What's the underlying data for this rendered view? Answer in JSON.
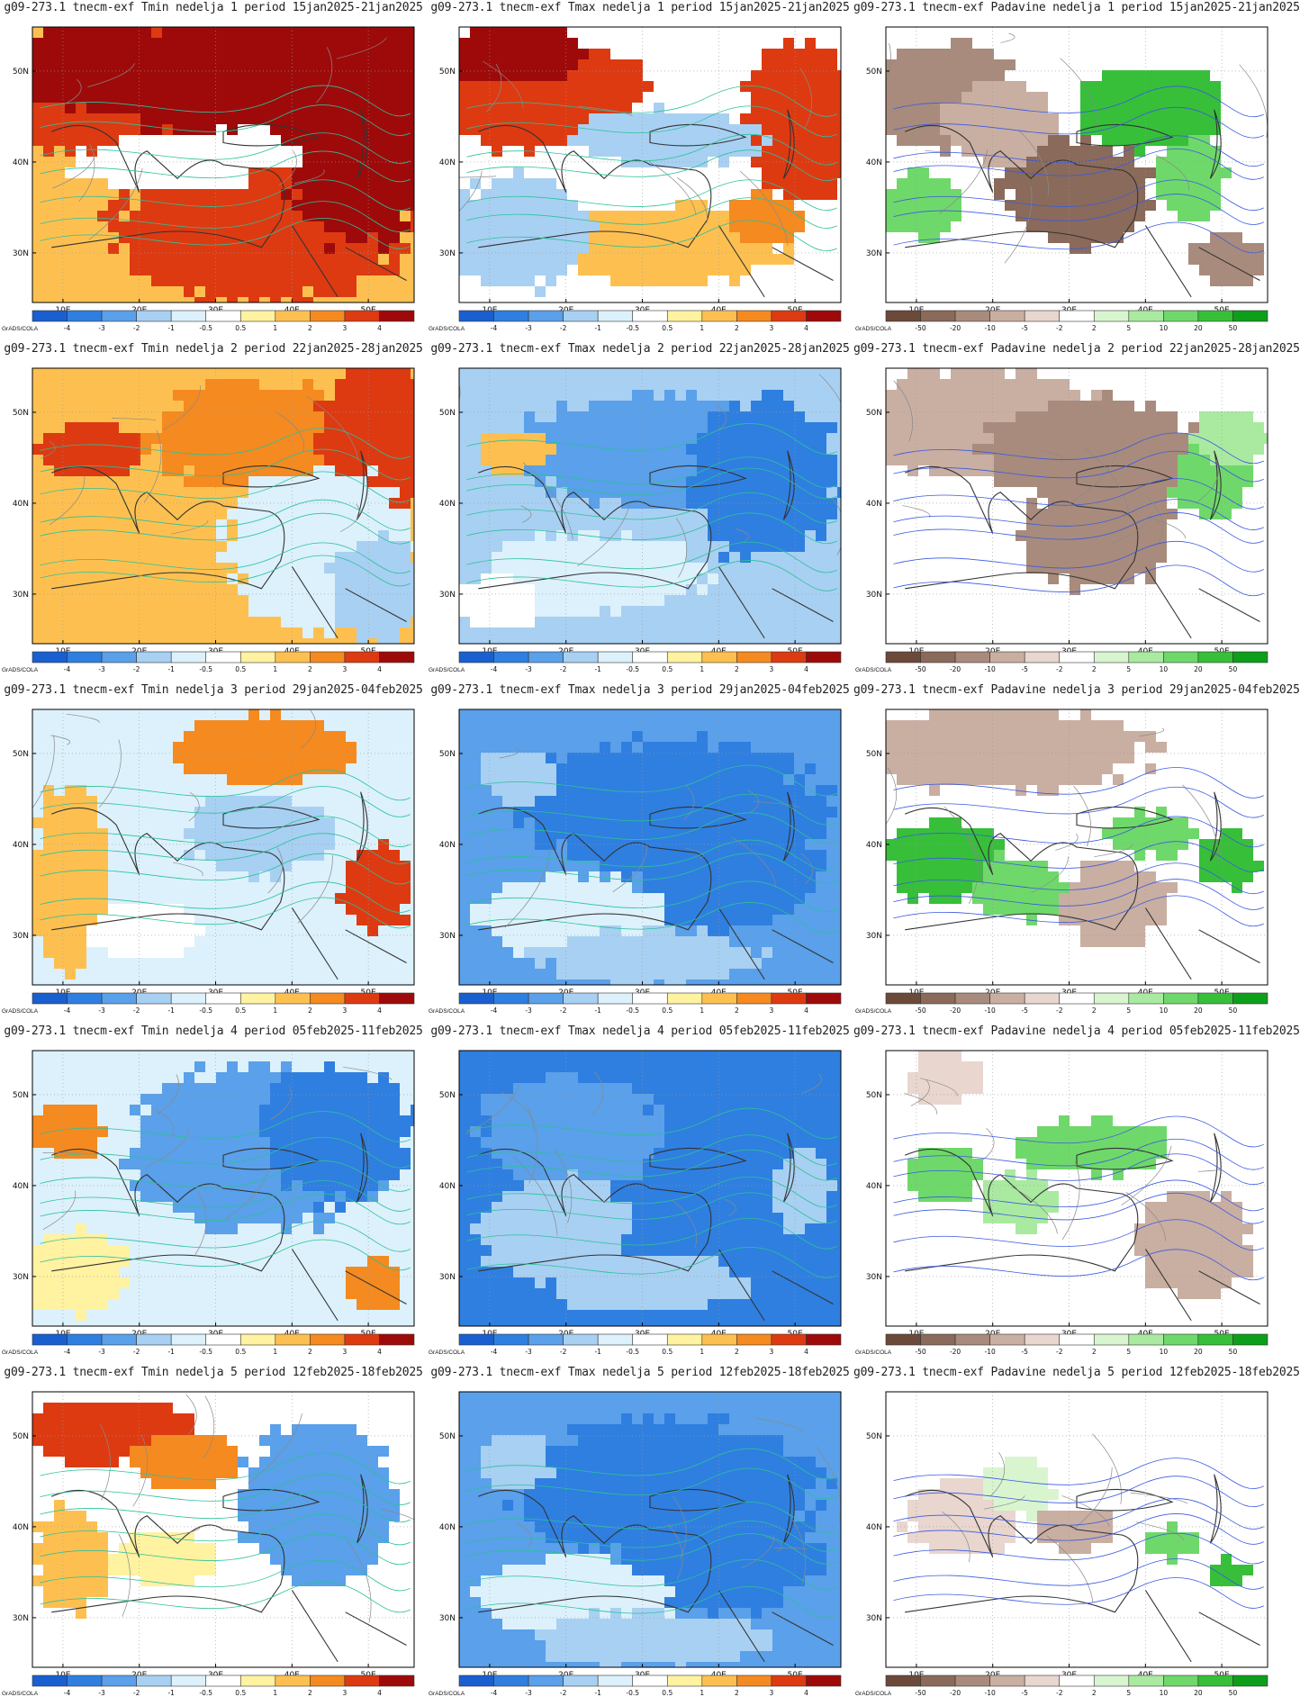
{
  "credit": "GrADS/COLA",
  "colorbars": {
    "temp": {
      "labels": [
        "-4",
        "-3",
        "-2",
        "-1",
        "-0.5",
        "0.5",
        "1",
        "2",
        "3",
        "4"
      ],
      "colors": [
        "#1a5fcf",
        "#2f7fe0",
        "#5aa0ea",
        "#a8d0f2",
        "#dcf1fb",
        "#ffffff",
        "#fff2a0",
        "#fdc050",
        "#f48a20",
        "#dd3a12",
        "#9e0a0a"
      ]
    },
    "prec": {
      "labels": [
        "-50",
        "-20",
        "-10",
        "-5",
        "-2",
        "2",
        "5",
        "10",
        "20",
        "50"
      ],
      "colors": [
        "#6b4a3a",
        "#8a6a5a",
        "#a88b7c",
        "#c9aea2",
        "#e8d6cf",
        "#ffffff",
        "#d8f5d0",
        "#a9eaa0",
        "#6fd86a",
        "#37bf3a",
        "#0e9f1a"
      ]
    }
  },
  "axes": {
    "lon_ticks": [
      "10E",
      "20E",
      "30E",
      "40E",
      "50E"
    ],
    "lat_ticks": [
      "50N",
      "40N",
      "30N"
    ]
  },
  "rows": [
    {
      "week": 1,
      "panels": [
        {
          "title": "g09-273.1 tnecm-exf Tmin nedelja 1 period 15jan2025-21jan2025",
          "kind": "temp",
          "theme": "warm-strong"
        },
        {
          "title": "g09-273.1 tnecm-exf Tmax nedelja 1 period 15jan2025-21jan2025",
          "kind": "temp",
          "theme": "mixed-warm"
        },
        {
          "title": "g09-273.1 tnecm-exf Padavine nedelja 1 period 15jan2025-21jan2025",
          "kind": "prec",
          "theme": "dry-east-wet"
        }
      ]
    },
    {
      "week": 2,
      "panels": [
        {
          "title": "g09-273.1 tnecm-exf Tmin nedelja 2 period 22jan2025-28jan2025",
          "kind": "temp",
          "theme": "warm"
        },
        {
          "title": "g09-273.1 tnecm-exf Tmax nedelja 2 period 22jan2025-28jan2025",
          "kind": "temp",
          "theme": "cool"
        },
        {
          "title": "g09-273.1 tnecm-exf Padavine nedelja 2 period 22jan2025-28jan2025",
          "kind": "prec",
          "theme": "dry"
        }
      ]
    },
    {
      "week": 3,
      "panels": [
        {
          "title": "g09-273.1 tnecm-exf Tmin nedelja 3 period 29jan2025-04feb2025",
          "kind": "temp",
          "theme": "mixed-cool"
        },
        {
          "title": "g09-273.1 tnecm-exf Tmax nedelja 3 period 29jan2025-04feb2025",
          "kind": "temp",
          "theme": "cold"
        },
        {
          "title": "g09-273.1 tnecm-exf Padavine nedelja 3 period 29jan2025-04feb2025",
          "kind": "prec",
          "theme": "dry-north-wet"
        }
      ]
    },
    {
      "week": 4,
      "panels": [
        {
          "title": "g09-273.1 tnecm-exf Tmin nedelja 4 period 05feb2025-11feb2025",
          "kind": "temp",
          "theme": "cool-east"
        },
        {
          "title": "g09-273.1 tnecm-exf Tmax nedelja 4 period 05feb2025-11feb2025",
          "kind": "temp",
          "theme": "very-cold"
        },
        {
          "title": "g09-273.1 tnecm-exf Padavine nedelja 4 period 05feb2025-11feb2025",
          "kind": "prec",
          "theme": "wet-mixed"
        }
      ]
    },
    {
      "week": 5,
      "panels": [
        {
          "title": "g09-273.1 tnecm-exf Tmin nedelja 5 period 12feb2025-18feb2025",
          "kind": "temp",
          "theme": "warm-north-cool-east"
        },
        {
          "title": "g09-273.1 tnecm-exf Tmax nedelja 5 period 12feb2025-18feb2025",
          "kind": "temp",
          "theme": "cold"
        },
        {
          "title": "g09-273.1 tnecm-exf Padavine nedelja 5 period 12feb2025-18feb2025",
          "kind": "prec",
          "theme": "neutral"
        }
      ]
    }
  ]
}
